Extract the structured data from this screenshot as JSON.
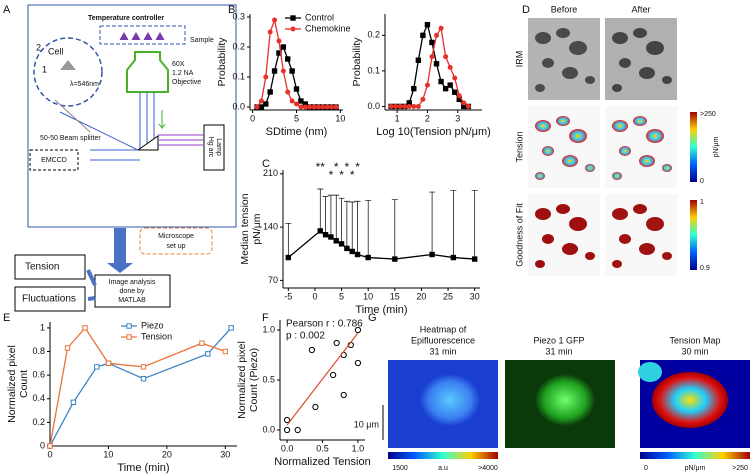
{
  "panel_labels": [
    "A",
    "B",
    "C",
    "D",
    "E",
    "F",
    "G"
  ],
  "diagram": {
    "temperature_controller": "Temperature controller",
    "sample": "Sample",
    "cell": "Cell",
    "path_2": "2",
    "path_1": "1",
    "wavelength": "λ=546nm",
    "objective": [
      "60X",
      "1.2 NA",
      "Objective"
    ],
    "beam_splitter": "50-50 Beam splitter",
    "emccd": "EMCCD",
    "lamp": [
      "Hg arc",
      "Lamp"
    ],
    "microscope": [
      "Microscope",
      "set up"
    ],
    "tension": "Tension",
    "fluctuations": "Fluctuations",
    "analysis": [
      "Image analysis",
      "done by",
      "MATLAB"
    ]
  },
  "panel_d": {
    "columns": [
      "Before",
      "After"
    ],
    "rows": [
      "IRM",
      "Tension",
      "Goodness of Fit"
    ],
    "tension_bar": [
      ">250",
      "pN/μm",
      "0"
    ],
    "fit_bar": [
      "1",
      "0.9"
    ]
  },
  "panel_g": {
    "titles": [
      [
        "Heatmap of",
        "Epifluorescence",
        "31 min"
      ],
      [
        "Piezo 1 GFP",
        "31 min"
      ],
      [
        "Tension Map",
        "30 min"
      ]
    ],
    "scale_bar": "10 μm",
    "bar1": [
      "1500",
      "a.u",
      ">4000"
    ],
    "bar2": [
      "0",
      "pN/μm",
      ">250"
    ]
  },
  "chart_data": [
    {
      "type": "line",
      "xlabel": "SDtime (nm)",
      "ylabel": "Probability",
      "legend": "upper right",
      "x": [
        0.5,
        1,
        1.5,
        2,
        2.5,
        3,
        3.5,
        4,
        4.5,
        5,
        5.5,
        6,
        6.5,
        7,
        7.5,
        8,
        8.5,
        9,
        9.5
      ],
      "xlim": [
        -0.3,
        10.3
      ],
      "xticks": [
        0,
        5,
        10
      ],
      "ylim": [
        -0.01,
        0.31
      ],
      "yticks": [
        {
          "value": 0,
          "label": "0.0"
        },
        {
          "value": 0.1,
          "label": "0.1"
        },
        {
          "value": 0.2,
          "label": "0.2"
        },
        {
          "value": 0.3,
          "label": "0.3"
        }
      ],
      "series": [
        {
          "name": "Control",
          "color": "#000000",
          "marker": "square",
          "values": [
            0,
            0,
            0.01,
            0.05,
            0.12,
            0.18,
            0.2,
            0.16,
            0.12,
            0.06,
            0.02,
            0.01,
            0,
            0,
            0,
            0,
            0,
            0,
            0
          ]
        },
        {
          "name": "Chemokine",
          "color": "#e8302a",
          "marker": "circle",
          "values": [
            0,
            0.02,
            0.1,
            0.25,
            0.29,
            0.22,
            0.12,
            0.05,
            0.02,
            0.01,
            0,
            0,
            0,
            0,
            0,
            0,
            0,
            0,
            0
          ]
        }
      ]
    },
    {
      "type": "line",
      "xlabel": "Log 10(Tension pN/μm)",
      "ylabel": "Probability",
      "x": [
        0.8,
        0.95,
        1.1,
        1.25,
        1.4,
        1.55,
        1.7,
        1.85,
        2.0,
        2.15,
        2.3,
        2.45,
        2.6,
        2.75,
        2.9,
        3.05,
        3.2,
        3.35
      ],
      "xlim": [
        0.6,
        3.8
      ],
      "xticks": [
        1,
        2,
        3
      ],
      "ylim": [
        -0.01,
        0.26
      ],
      "yticks": [
        {
          "value": 0,
          "label": "0.0"
        },
        {
          "value": 0.1,
          "label": "0.1"
        },
        {
          "value": 0.2,
          "label": "0.2"
        }
      ],
      "series": [
        {
          "color": "#000000",
          "marker": "square",
          "values": [
            0,
            0,
            0,
            0,
            0.01,
            0.05,
            0.13,
            0.2,
            0.23,
            0.18,
            0.12,
            0.07,
            0.05,
            0.06,
            0.04,
            0.02,
            0,
            0
          ]
        },
        {
          "color": "#e8302a",
          "marker": "circle",
          "values": [
            0,
            0,
            0,
            0,
            0,
            0,
            0,
            0.02,
            0.06,
            0.14,
            0.2,
            0.22,
            0.14,
            0.11,
            0.08,
            0.03,
            0.01,
            0
          ]
        }
      ]
    },
    {
      "type": "line",
      "xlabel": "Time (min)",
      "ylabel": [
        "Median tension",
        "pN/μm"
      ],
      "x": [
        -5,
        1,
        2,
        3,
        4,
        5,
        6,
        7,
        8,
        10,
        15,
        22,
        26,
        30
      ],
      "xlim": [
        -6,
        31
      ],
      "xticks": [
        -5,
        0,
        5,
        10,
        15,
        20,
        25,
        30
      ],
      "ylim": [
        60,
        215
      ],
      "yticks": [
        70,
        140,
        210
      ],
      "series": [
        {
          "color": "#000000",
          "marker": "square",
          "values": [
            100,
            135,
            130,
            127,
            122,
            118,
            112,
            108,
            104,
            100,
            98,
            104,
            100,
            98
          ],
          "errors": [
            45,
            55,
            50,
            55,
            60,
            60,
            62,
            65,
            70,
            75,
            78,
            82,
            88,
            90
          ]
        }
      ],
      "annotations": [
        {
          "x": 1,
          "label": "**"
        },
        {
          "x": 3,
          "label": "*"
        },
        {
          "x": 4,
          "label": "*"
        },
        {
          "x": 5,
          "label": "*"
        },
        {
          "x": 6,
          "label": "*"
        },
        {
          "x": 7,
          "label": "*"
        },
        {
          "x": 8,
          "label": "*"
        }
      ]
    },
    {
      "type": "line",
      "xlabel": "Time (min)",
      "ylabel": [
        "Normalized pixel",
        "Count"
      ],
      "legend": "upper center",
      "xlim": [
        0,
        32
      ],
      "xticks": [
        0,
        10,
        20,
        30
      ],
      "ylim": [
        0,
        1.05
      ],
      "yticks": [
        0,
        0.2,
        0.4,
        0.6,
        0.8,
        1
      ],
      "series": [
        {
          "name": "Piezo",
          "color": "#3c83c4",
          "marker": "open-square",
          "x": [
            0,
            4,
            8,
            10,
            16,
            27,
            31
          ],
          "values": [
            0,
            0.37,
            0.67,
            0.7,
            0.57,
            0.78,
            1.0
          ]
        },
        {
          "name": "Tension",
          "color": "#e8743b",
          "marker": "open-square",
          "x": [
            0,
            3,
            6,
            10,
            16,
            26,
            30
          ],
          "values": [
            0,
            0.83,
            1.0,
            0.7,
            0.67,
            0.87,
            0.8
          ]
        }
      ]
    },
    {
      "type": "scatter",
      "xlabel": "Normalized Tension",
      "ylabel": [
        "Normalized pixel",
        "Count (Piezo)"
      ],
      "xlim": [
        -0.1,
        1.1
      ],
      "xticks": [
        {
          "value": 0,
          "label": "0.0"
        },
        {
          "value": 0.5,
          "label": "0.5"
        },
        {
          "value": 1,
          "label": "1.0"
        }
      ],
      "ylim": [
        -0.1,
        1.1
      ],
      "yticks": [
        {
          "value": 0,
          "label": "0.0"
        },
        {
          "value": 0.5,
          "label": "0.5"
        },
        {
          "value": 1,
          "label": "1.0"
        }
      ],
      "series": [
        {
          "color": "#000000",
          "marker": "open-circle",
          "x": [
            0,
            0,
            0.15,
            0.35,
            0.4,
            0.65,
            0.7,
            0.8,
            0.8,
            0.9,
            1,
            1
          ],
          "values": [
            0.1,
            0,
            0,
            0.8,
            0.23,
            0.55,
            0.87,
            0.35,
            0.75,
            0.85,
            1,
            0.67
          ]
        }
      ],
      "fit": {
        "color": "#e04a2f",
        "x": [
          0,
          1
        ],
        "values": [
          0.05,
          0.97
        ]
      },
      "annotations": [
        "Pearson r : 0.786",
        "p : 0.002"
      ]
    }
  ]
}
